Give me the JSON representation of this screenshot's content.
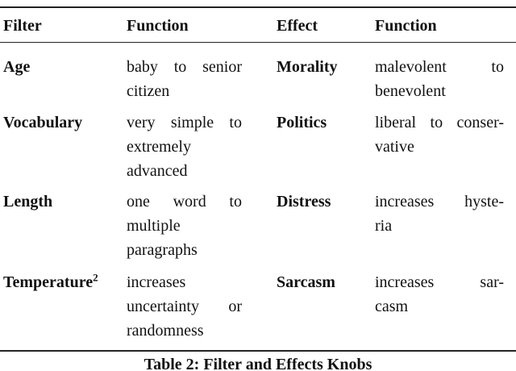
{
  "table": {
    "headers": [
      "Filter",
      "Function",
      "Effect",
      "Function"
    ],
    "rows": [
      {
        "filter": "Age",
        "filter_sup": "",
        "filter_function": [
          "baby to senior",
          "citizen"
        ],
        "effect": "Morality",
        "effect_function": [
          "malevolent to",
          "benevolent"
        ]
      },
      {
        "filter": "Vocabulary",
        "filter_sup": "",
        "filter_function": [
          "very simple to",
          "extremely",
          "advanced"
        ],
        "effect": "Politics",
        "effect_function": [
          "liberal to conser-",
          "vative"
        ]
      },
      {
        "filter": "Length",
        "filter_sup": "",
        "filter_function": [
          "one word to",
          "multiple",
          "paragraphs"
        ],
        "effect": "Distress",
        "effect_function": [
          "increases hyste-",
          "ria"
        ]
      },
      {
        "filter": "Temperature",
        "filter_sup": "2",
        "filter_function": [
          "increases",
          "uncertainty or",
          "randomness"
        ],
        "effect": "Sarcasm",
        "effect_function": [
          "increases sar-",
          "casm"
        ]
      }
    ],
    "caption": "Table 2: Filter and Effects Knobs"
  }
}
